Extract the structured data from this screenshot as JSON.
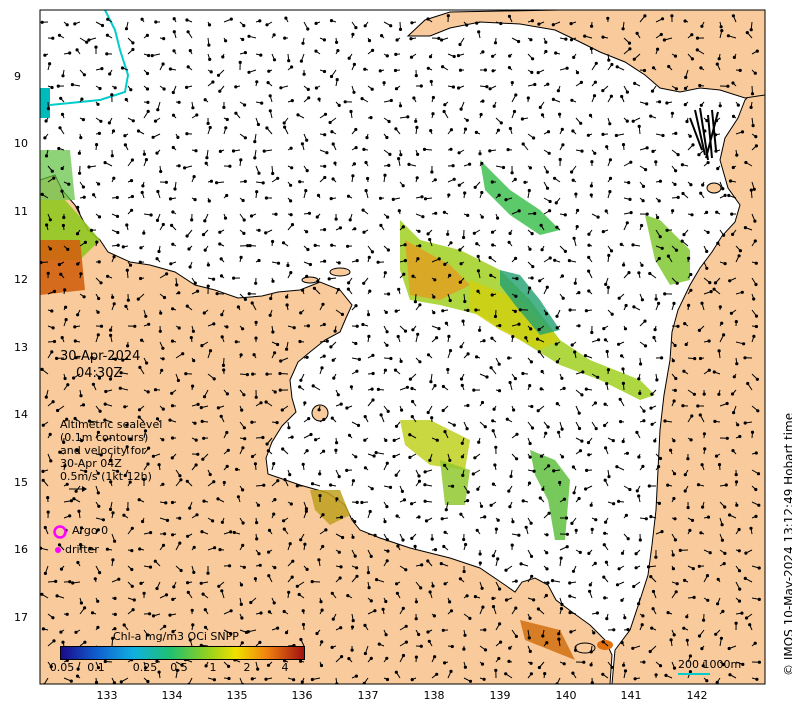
{
  "title": {
    "date": "30-Apr-2024",
    "time": "04:30Z"
  },
  "description_lines": [
    "Altimetric sealevel",
    "(0.1m contours)",
    "and velocity for",
    "30-Apr 04Z",
    "0.5m/s (1kt 12h)"
  ],
  "legend": {
    "argo": "Argo 0",
    "drifter": "drifter"
  },
  "credit": "© IMOS 10-May-2024 13:12:49 Hobart time",
  "axes": {
    "x_ticks": [
      "133",
      "134",
      "135",
      "136",
      "137",
      "138",
      "139",
      "140",
      "141",
      "142"
    ],
    "y_ticks": [
      "9",
      "10",
      "11",
      "12",
      "13",
      "14",
      "15",
      "16",
      "17"
    ]
  },
  "colorbar": {
    "title": "Chl-a mg/m3 OCi SNPP",
    "ticks": [
      "0.05",
      "0.1",
      "0.25",
      "0.5",
      "1",
      "2",
      "4"
    ]
  },
  "scale_bar": {
    "label": "200  1000m"
  },
  "colors": {
    "land": "#f9cb9c",
    "sea": "#ffffff",
    "coast": "#000000",
    "argo": "#ff00ff",
    "drifter": "#ff00ff",
    "track": "#00cccc"
  }
}
